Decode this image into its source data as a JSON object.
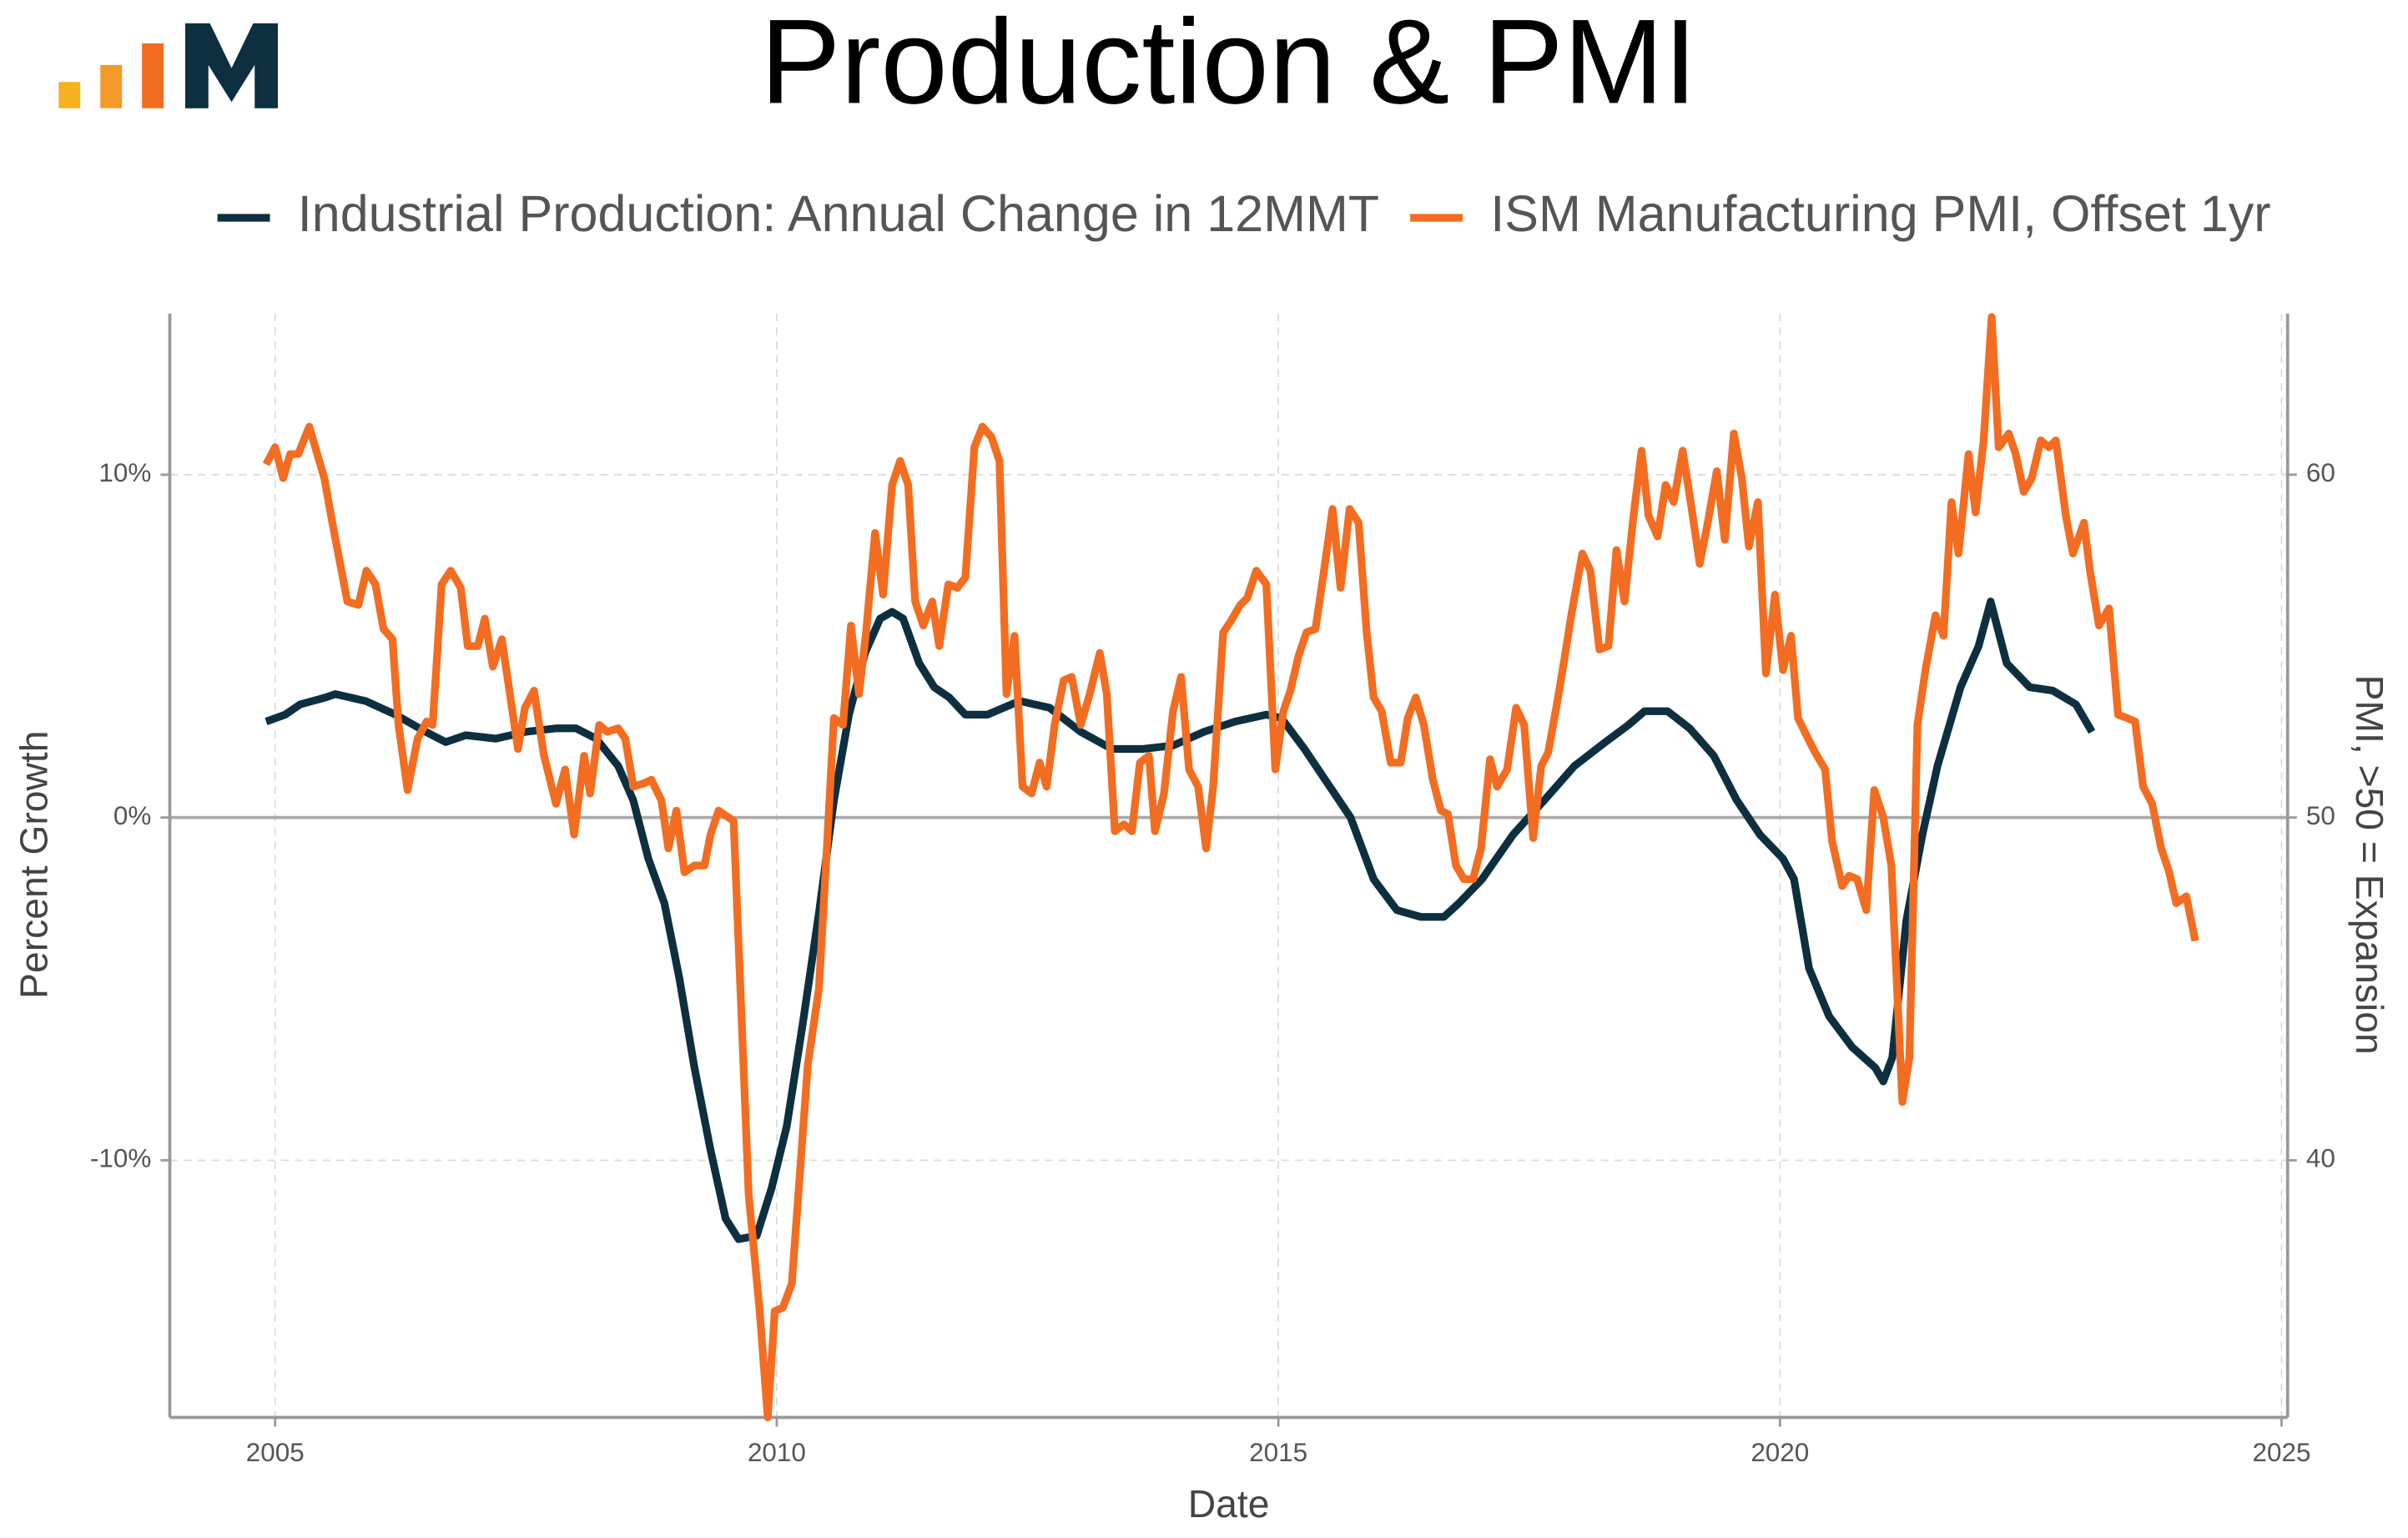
{
  "chart_data": {
    "type": "line",
    "title": "Production & PMI",
    "x_label": "Date",
    "y_label": "Percent Growth",
    "y2_label": "PMI, >50 = Expansion",
    "xlim": [
      2003.95,
      2025.06
    ],
    "xticks": [
      2005,
      2010,
      2015,
      2020,
      2025
    ],
    "ylim": [
      -17.5,
      14.7
    ],
    "yticks": [
      {
        "value": -10,
        "label": "-10%"
      },
      {
        "value": 0,
        "label": "0%"
      },
      {
        "value": 10,
        "label": "10%"
      }
    ],
    "y2lim": [
      32.5,
      64.7
    ],
    "y2ticks": [
      40,
      50,
      60
    ],
    "grid": true,
    "legend": "top",
    "series": [
      {
        "name": "Industrial Production: Annual Change in 12MMT",
        "color": "#0d2f3f",
        "x": [
          2004.91,
          2005.1,
          2005.25,
          2005.5,
          2005.6,
          2005.9,
          2006.2,
          2006.5,
          2006.7,
          2006.9,
          2007.2,
          2007.5,
          2007.8,
          2008.0,
          2008.2,
          2008.42,
          2008.57,
          2008.72,
          2008.88,
          2009.03,
          2009.18,
          2009.34,
          2009.49,
          2009.62,
          2009.8,
          2009.95,
          2010.1,
          2010.26,
          2010.42,
          2010.57,
          2010.72,
          2010.88,
          2011.03,
          2011.15,
          2011.26,
          2011.42,
          2011.57,
          2011.72,
          2011.88,
          2012.1,
          2012.42,
          2012.72,
          2013.03,
          2013.34,
          2013.65,
          2013.95,
          2014.26,
          2014.57,
          2014.88,
          2015.03,
          2015.26,
          2015.49,
          2015.72,
          2015.95,
          2016.18,
          2016.42,
          2016.65,
          2016.8,
          2017.03,
          2017.34,
          2017.65,
          2017.95,
          2018.26,
          2018.49,
          2018.65,
          2018.88,
          2019.1,
          2019.34,
          2019.57,
          2019.8,
          2020.03,
          2020.14,
          2020.29,
          2020.49,
          2020.72,
          2020.95,
          2021.03,
          2021.12,
          2021.26,
          2021.42,
          2021.57,
          2021.8,
          2021.98,
          2022.1,
          2022.26,
          2022.49,
          2022.72,
          2022.95,
          2023.11
        ],
        "values": [
          2.8,
          3.0,
          3.3,
          3.5,
          3.6,
          3.4,
          3.0,
          2.5,
          2.2,
          2.4,
          2.3,
          2.5,
          2.6,
          2.6,
          2.3,
          1.5,
          0.5,
          -1.2,
          -2.5,
          -4.7,
          -7.3,
          -9.7,
          -11.7,
          -12.3,
          -12.2,
          -10.8,
          -9.0,
          -6.0,
          -2.8,
          0.5,
          3.0,
          4.8,
          5.8,
          6.0,
          5.8,
          4.5,
          3.8,
          3.5,
          3.0,
          3.0,
          3.4,
          3.2,
          2.5,
          2.0,
          2.0,
          2.1,
          2.5,
          2.8,
          3.0,
          2.9,
          2.0,
          1.0,
          0,
          -1.8,
          -2.7,
          -2.9,
          -2.9,
          -2.5,
          -1.8,
          -0.5,
          0.5,
          1.5,
          2.2,
          2.7,
          3.1,
          3.1,
          2.6,
          1.8,
          0.5,
          -0.5,
          -1.2,
          -1.8,
          -4.4,
          -5.8,
          -6.7,
          -7.3,
          -7.7,
          -7.0,
          -3.0,
          -0.5,
          1.5,
          3.8,
          5.0,
          6.3,
          4.5,
          3.8,
          3.7,
          3.3,
          2.5
        ]
      },
      {
        "name": "ISM Manufacturing PMI, Offset 1yr",
        "color": "#f26d21",
        "axis": "y2",
        "x": [
          2004.91,
          2005.0,
          2005.08,
          2005.15,
          2005.23,
          2005.34,
          2005.42,
          2005.49,
          2005.57,
          2005.72,
          2005.83,
          2005.91,
          2006.0,
          2006.08,
          2006.17,
          2006.23,
          2006.32,
          2006.42,
          2006.51,
          2006.57,
          2006.66,
          2006.75,
          2006.85,
          2006.92,
          2007.02,
          2007.09,
          2007.17,
          2007.26,
          2007.34,
          2007.42,
          2007.49,
          2007.58,
          2007.68,
          2007.8,
          2007.89,
          2007.98,
          2008.08,
          2008.14,
          2008.23,
          2008.31,
          2008.42,
          2008.49,
          2008.57,
          2008.68,
          2008.75,
          2008.85,
          2008.92,
          2009.0,
          2009.08,
          2009.18,
          2009.28,
          2009.34,
          2009.42,
          2009.57,
          2009.65,
          2009.72,
          2009.83,
          2009.91,
          2009.98,
          2010.06,
          2010.15,
          2010.23,
          2010.31,
          2010.42,
          2010.49,
          2010.57,
          2010.66,
          2010.74,
          2010.82,
          2010.89,
          2010.98,
          2011.06,
          2011.15,
          2011.23,
          2011.31,
          2011.38,
          2011.46,
          2011.55,
          2011.62,
          2011.71,
          2011.8,
          2011.88,
          2011.97,
          2012.05,
          2012.14,
          2012.22,
          2012.29,
          2012.37,
          2012.45,
          2012.54,
          2012.62,
          2012.69,
          2012.77,
          2012.86,
          2012.94,
          2013.03,
          2013.12,
          2013.22,
          2013.29,
          2013.37,
          2013.46,
          2013.54,
          2013.62,
          2013.71,
          2013.77,
          2013.86,
          2013.95,
          2014.03,
          2014.11,
          2014.2,
          2014.28,
          2014.35,
          2014.45,
          2014.52,
          2014.62,
          2014.69,
          2014.78,
          2014.88,
          2014.97,
          2015.05,
          2015.12,
          2015.2,
          2015.28,
          2015.37,
          2015.45,
          2015.54,
          2015.62,
          2015.71,
          2015.8,
          2015.88,
          2015.95,
          2016.03,
          2016.12,
          2016.22,
          2016.29,
          2016.37,
          2016.45,
          2016.54,
          2016.62,
          2016.69,
          2016.77,
          2016.85,
          2016.94,
          2017.02,
          2017.11,
          2017.18,
          2017.28,
          2017.37,
          2017.45,
          2017.54,
          2017.62,
          2017.69,
          2017.77,
          2017.85,
          2017.92,
          2018.03,
          2018.11,
          2018.2,
          2018.29,
          2018.37,
          2018.45,
          2018.54,
          2018.62,
          2018.69,
          2018.78,
          2018.86,
          2018.94,
          2019.03,
          2019.12,
          2019.2,
          2019.28,
          2019.37,
          2019.45,
          2019.54,
          2019.62,
          2019.69,
          2019.78,
          2019.86,
          2019.95,
          2020.03,
          2020.11,
          2020.18,
          2020.28,
          2020.35,
          2020.45,
          2020.52,
          2020.62,
          2020.69,
          2020.77,
          2020.86,
          2020.94,
          2021.03,
          2021.11,
          2021.22,
          2021.29,
          2021.37,
          2021.45,
          2021.55,
          2021.63,
          2021.71,
          2021.78,
          2021.88,
          2021.95,
          2022.03,
          2022.11,
          2022.18,
          2022.28,
          2022.35,
          2022.43,
          2022.51,
          2022.6,
          2022.68,
          2022.75,
          2022.85,
          2022.92,
          2023.03,
          2023.09,
          2023.18,
          2023.28,
          2023.37,
          2023.46,
          2023.54,
          2023.62,
          2023.71,
          2023.8,
          2023.88,
          2023.95,
          2024.05,
          2024.14
        ],
        "values": [
          60.3,
          60.8,
          59.9,
          60.6,
          60.6,
          61.4,
          60.6,
          59.9,
          58.6,
          56.3,
          56.2,
          57.2,
          56.8,
          55.5,
          55.2,
          52.7,
          50.8,
          52.3,
          52.8,
          52.7,
          56.8,
          57.2,
          56.7,
          55.0,
          55.0,
          55.8,
          54.4,
          55.2,
          53.6,
          52.0,
          53.2,
          53.7,
          51.8,
          50.4,
          51.4,
          49.5,
          51.8,
          50.7,
          52.7,
          52.5,
          52.6,
          52.3,
          50.9,
          51.0,
          51.1,
          50.5,
          49.1,
          50.2,
          48.4,
          48.6,
          48.6,
          49.5,
          50.2,
          49.9,
          44.1,
          39.0,
          35.6,
          32.5,
          35.6,
          35.7,
          36.4,
          39.6,
          42.8,
          45.0,
          48.6,
          52.9,
          52.7,
          55.6,
          53.6,
          55.4,
          58.3,
          56.5,
          59.7,
          60.4,
          59.7,
          56.3,
          55.6,
          56.3,
          55.0,
          56.8,
          56.7,
          57.0,
          60.8,
          61.4,
          61.1,
          60.4,
          53.6,
          55.3,
          50.9,
          50.7,
          51.6,
          50.9,
          52.7,
          54.0,
          54.1,
          52.7,
          53.6,
          54.8,
          53.6,
          49.6,
          49.8,
          49.6,
          51.6,
          51.8,
          49.6,
          50.7,
          53.1,
          54.1,
          51.4,
          50.9,
          49.1,
          50.9,
          55.4,
          55.7,
          56.2,
          56.4,
          57.2,
          56.8,
          51.4,
          53.1,
          53.7,
          54.7,
          55.4,
          55.5,
          57.1,
          59.0,
          56.7,
          59.0,
          58.6,
          55.4,
          53.5,
          53.1,
          51.6,
          51.6,
          52.9,
          53.5,
          52.7,
          51.1,
          50.2,
          50.1,
          48.6,
          48.2,
          48.2,
          49.1,
          51.7,
          50.9,
          51.4,
          53.2,
          52.7,
          49.4,
          51.5,
          51.9,
          53.2,
          54.6,
          55.9,
          57.7,
          57.2,
          54.9,
          55.0,
          57.8,
          56.3,
          58.8,
          60.7,
          58.8,
          58.2,
          59.7,
          59.2,
          60.7,
          59.0,
          57.4,
          58.6,
          60.1,
          58.1,
          61.2,
          59.9,
          57.9,
          59.2,
          54.2,
          56.5,
          54.3,
          55.3,
          52.9,
          52.3,
          51.9,
          51.4,
          49.3,
          48.0,
          48.3,
          48.2,
          47.3,
          50.8,
          50.0,
          48.6,
          41.7,
          43.0,
          52.7,
          54.3,
          55.9,
          55.3,
          59.2,
          57.7,
          60.6,
          58.9,
          61.0,
          64.6,
          60.8,
          61.2,
          60.6,
          59.5,
          59.9,
          61.0,
          60.8,
          61.0,
          58.8,
          57.7,
          58.6,
          57.2,
          55.6,
          56.1,
          53.0,
          52.9,
          52.8,
          50.9,
          50.4,
          49.1,
          48.4,
          47.5,
          47.7,
          46.4
        ]
      }
    ]
  }
}
